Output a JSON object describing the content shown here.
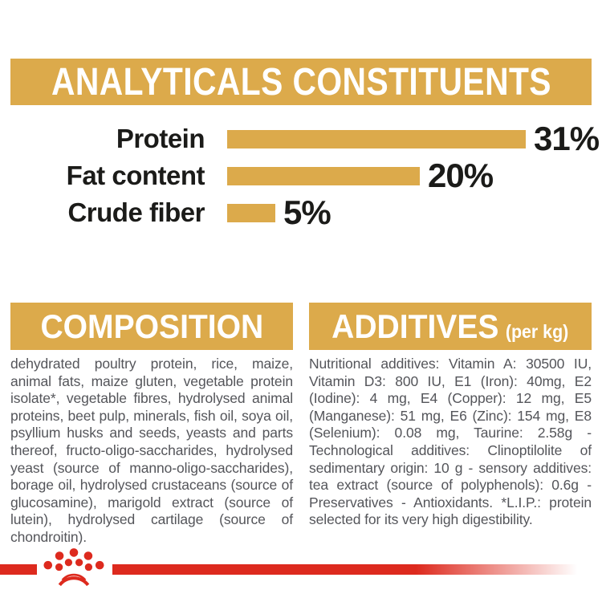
{
  "header": {
    "title": "ANALYTICALS CONSTITUENTS"
  },
  "chart_data": {
    "type": "bar",
    "orientation": "horizontal",
    "categories": [
      "Protein",
      "Fat content",
      "Crude fiber"
    ],
    "values": [
      31,
      20,
      5
    ],
    "value_labels": [
      "31%",
      "20%",
      "5%"
    ],
    "unit": "%",
    "xlim": [
      0,
      38
    ],
    "grid": false,
    "legend": "none",
    "bar_color": "#DCAA4B",
    "title": "ANALYTICALS CONSTITUENTS"
  },
  "sections": {
    "composition": {
      "title": "COMPOSITION",
      "body": "dehydrated poultry protein, rice, maize, animal fats, maize gluten, vegetable protein isolate*, vegetable fibres, hydrolysed animal proteins, beet pulp, minerals, fish oil, soya oil, psyllium husks and seeds, yeasts and parts thereof, fructo-oligo-saccharides, hydrolysed yeast (source of manno-oligo-saccharides), borage oil, hydrolysed crustaceans (source of glucosamine), marigold extract (source of lutein), hydrolysed cartilage (source of chondroitin)."
    },
    "additives": {
      "title": "ADDITIVES",
      "title_suffix": "(per kg)",
      "body": "Nutritional additives: Vitamin A: 30500 IU, Vitamin D3: 800 IU, E1 (Iron): 40mg, E2 (Iodine): 4 mg, E4 (Copper): 12 mg, E5 (Manganese): 51 mg, E6 (Zinc): 154 mg, E8 (Selenium): 0.08 mg, Taurine: 2.58g - Technological additives: Clinoptilolite of sedimentary origin: 10 g - sensory additives: tea extract (source of polyphenols): 0.6g - Preservatives - Antioxidants. *L.I.P.: protein selected for its very high digestibility."
    }
  },
  "footer": {
    "logo_name": "royal-canin-crown"
  },
  "colors": {
    "gold": "#DCAA4B",
    "red": "#DD2A1E",
    "label_black": "#1B1B19",
    "body_gray": "#54555A",
    "white": "#FFFFFF"
  }
}
